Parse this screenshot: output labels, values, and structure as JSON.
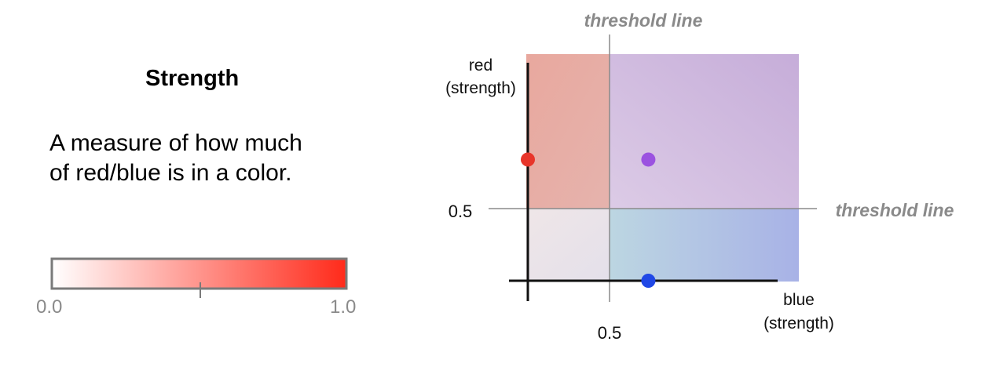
{
  "legend": {
    "title": "Strength",
    "description_lines": [
      "A measure of how much",
      "of red/blue is in a color."
    ],
    "scale_min": "0.0",
    "scale_max": "1.0",
    "scale_colors": [
      "#ffffff",
      "#ff2a1a"
    ]
  },
  "diagram": {
    "y_axis_label_lines": [
      "red",
      "(strength)"
    ],
    "x_axis_label_lines": [
      "blue",
      "(strength)"
    ],
    "y_tick": "0.5",
    "x_tick": "0.5",
    "threshold_top": "threshold line",
    "threshold_right": "threshold line",
    "quadrant_colors": {
      "top_left": "#e2aaa3",
      "top_right": "#c6b0de",
      "bottom_left": "#ece9ed",
      "bottom_right": "#a8b6e6"
    },
    "points": [
      {
        "name": "red point",
        "red": 0.8,
        "blue": 0.0,
        "color": "#e8352a"
      },
      {
        "name": "purple point",
        "red": 0.8,
        "blue": 0.8,
        "color": "#9b52e0"
      },
      {
        "name": "blue point",
        "red": 0.0,
        "blue": 0.8,
        "color": "#2048e6"
      }
    ]
  }
}
